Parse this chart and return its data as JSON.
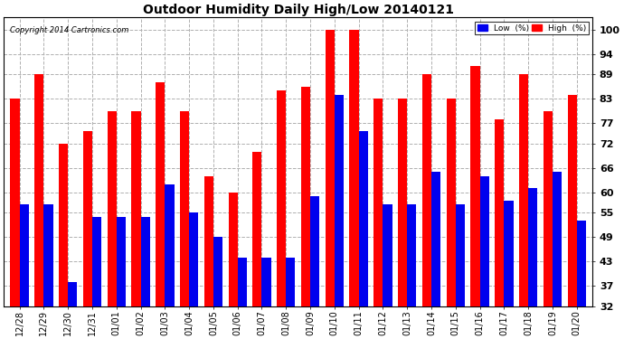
{
  "title": "Outdoor Humidity Daily High/Low 20140121",
  "copyright": "Copyright 2014 Cartronics.com",
  "background_color": "#ffffff",
  "plot_bg_color": "#ffffff",
  "grid_color": "#b0b0b0",
  "dates": [
    "12/28",
    "12/29",
    "12/30",
    "12/31",
    "01/01",
    "01/02",
    "01/03",
    "01/04",
    "01/05",
    "01/06",
    "01/07",
    "01/08",
    "01/09",
    "01/10",
    "01/11",
    "01/12",
    "01/13",
    "01/14",
    "01/15",
    "01/16",
    "01/17",
    "01/18",
    "01/19",
    "01/20"
  ],
  "high_values": [
    83,
    89,
    72,
    75,
    80,
    80,
    87,
    80,
    64,
    60,
    70,
    85,
    86,
    100,
    100,
    83,
    83,
    89,
    83,
    91,
    78,
    89,
    80,
    84
  ],
  "low_values": [
    57,
    57,
    38,
    54,
    54,
    54,
    62,
    55,
    49,
    44,
    44,
    44,
    59,
    84,
    75,
    57,
    57,
    65,
    57,
    64,
    58,
    61,
    65,
    53
  ],
  "high_color": "#ff0000",
  "low_color": "#0000ee",
  "yticks": [
    32,
    37,
    43,
    49,
    55,
    60,
    66,
    72,
    77,
    83,
    89,
    94,
    100
  ],
  "ymin": 32,
  "ymax": 103,
  "bar_width": 0.38,
  "legend_low_label": "Low  (%)",
  "legend_high_label": "High  (%)"
}
